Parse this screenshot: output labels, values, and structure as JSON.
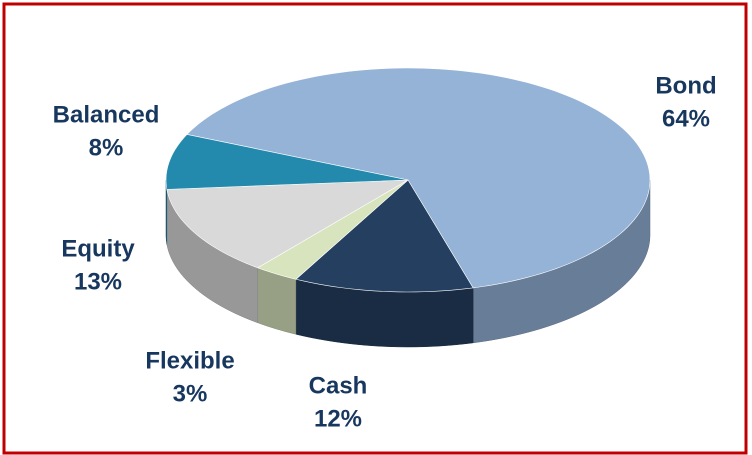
{
  "chart_data": {
    "type": "pie",
    "three_d": true,
    "categories": [
      "Bond",
      "Cash",
      "Flexible",
      "Equity",
      "Balanced"
    ],
    "values": [
      64,
      12,
      3,
      13,
      8
    ],
    "value_labels": [
      "64%",
      "12%",
      "3%",
      "13%",
      "8%"
    ],
    "colors": [
      "#95b3d7",
      "#243f60",
      "#d7e4bd",
      "#d9d9d9",
      "#2389ad"
    ]
  }
}
